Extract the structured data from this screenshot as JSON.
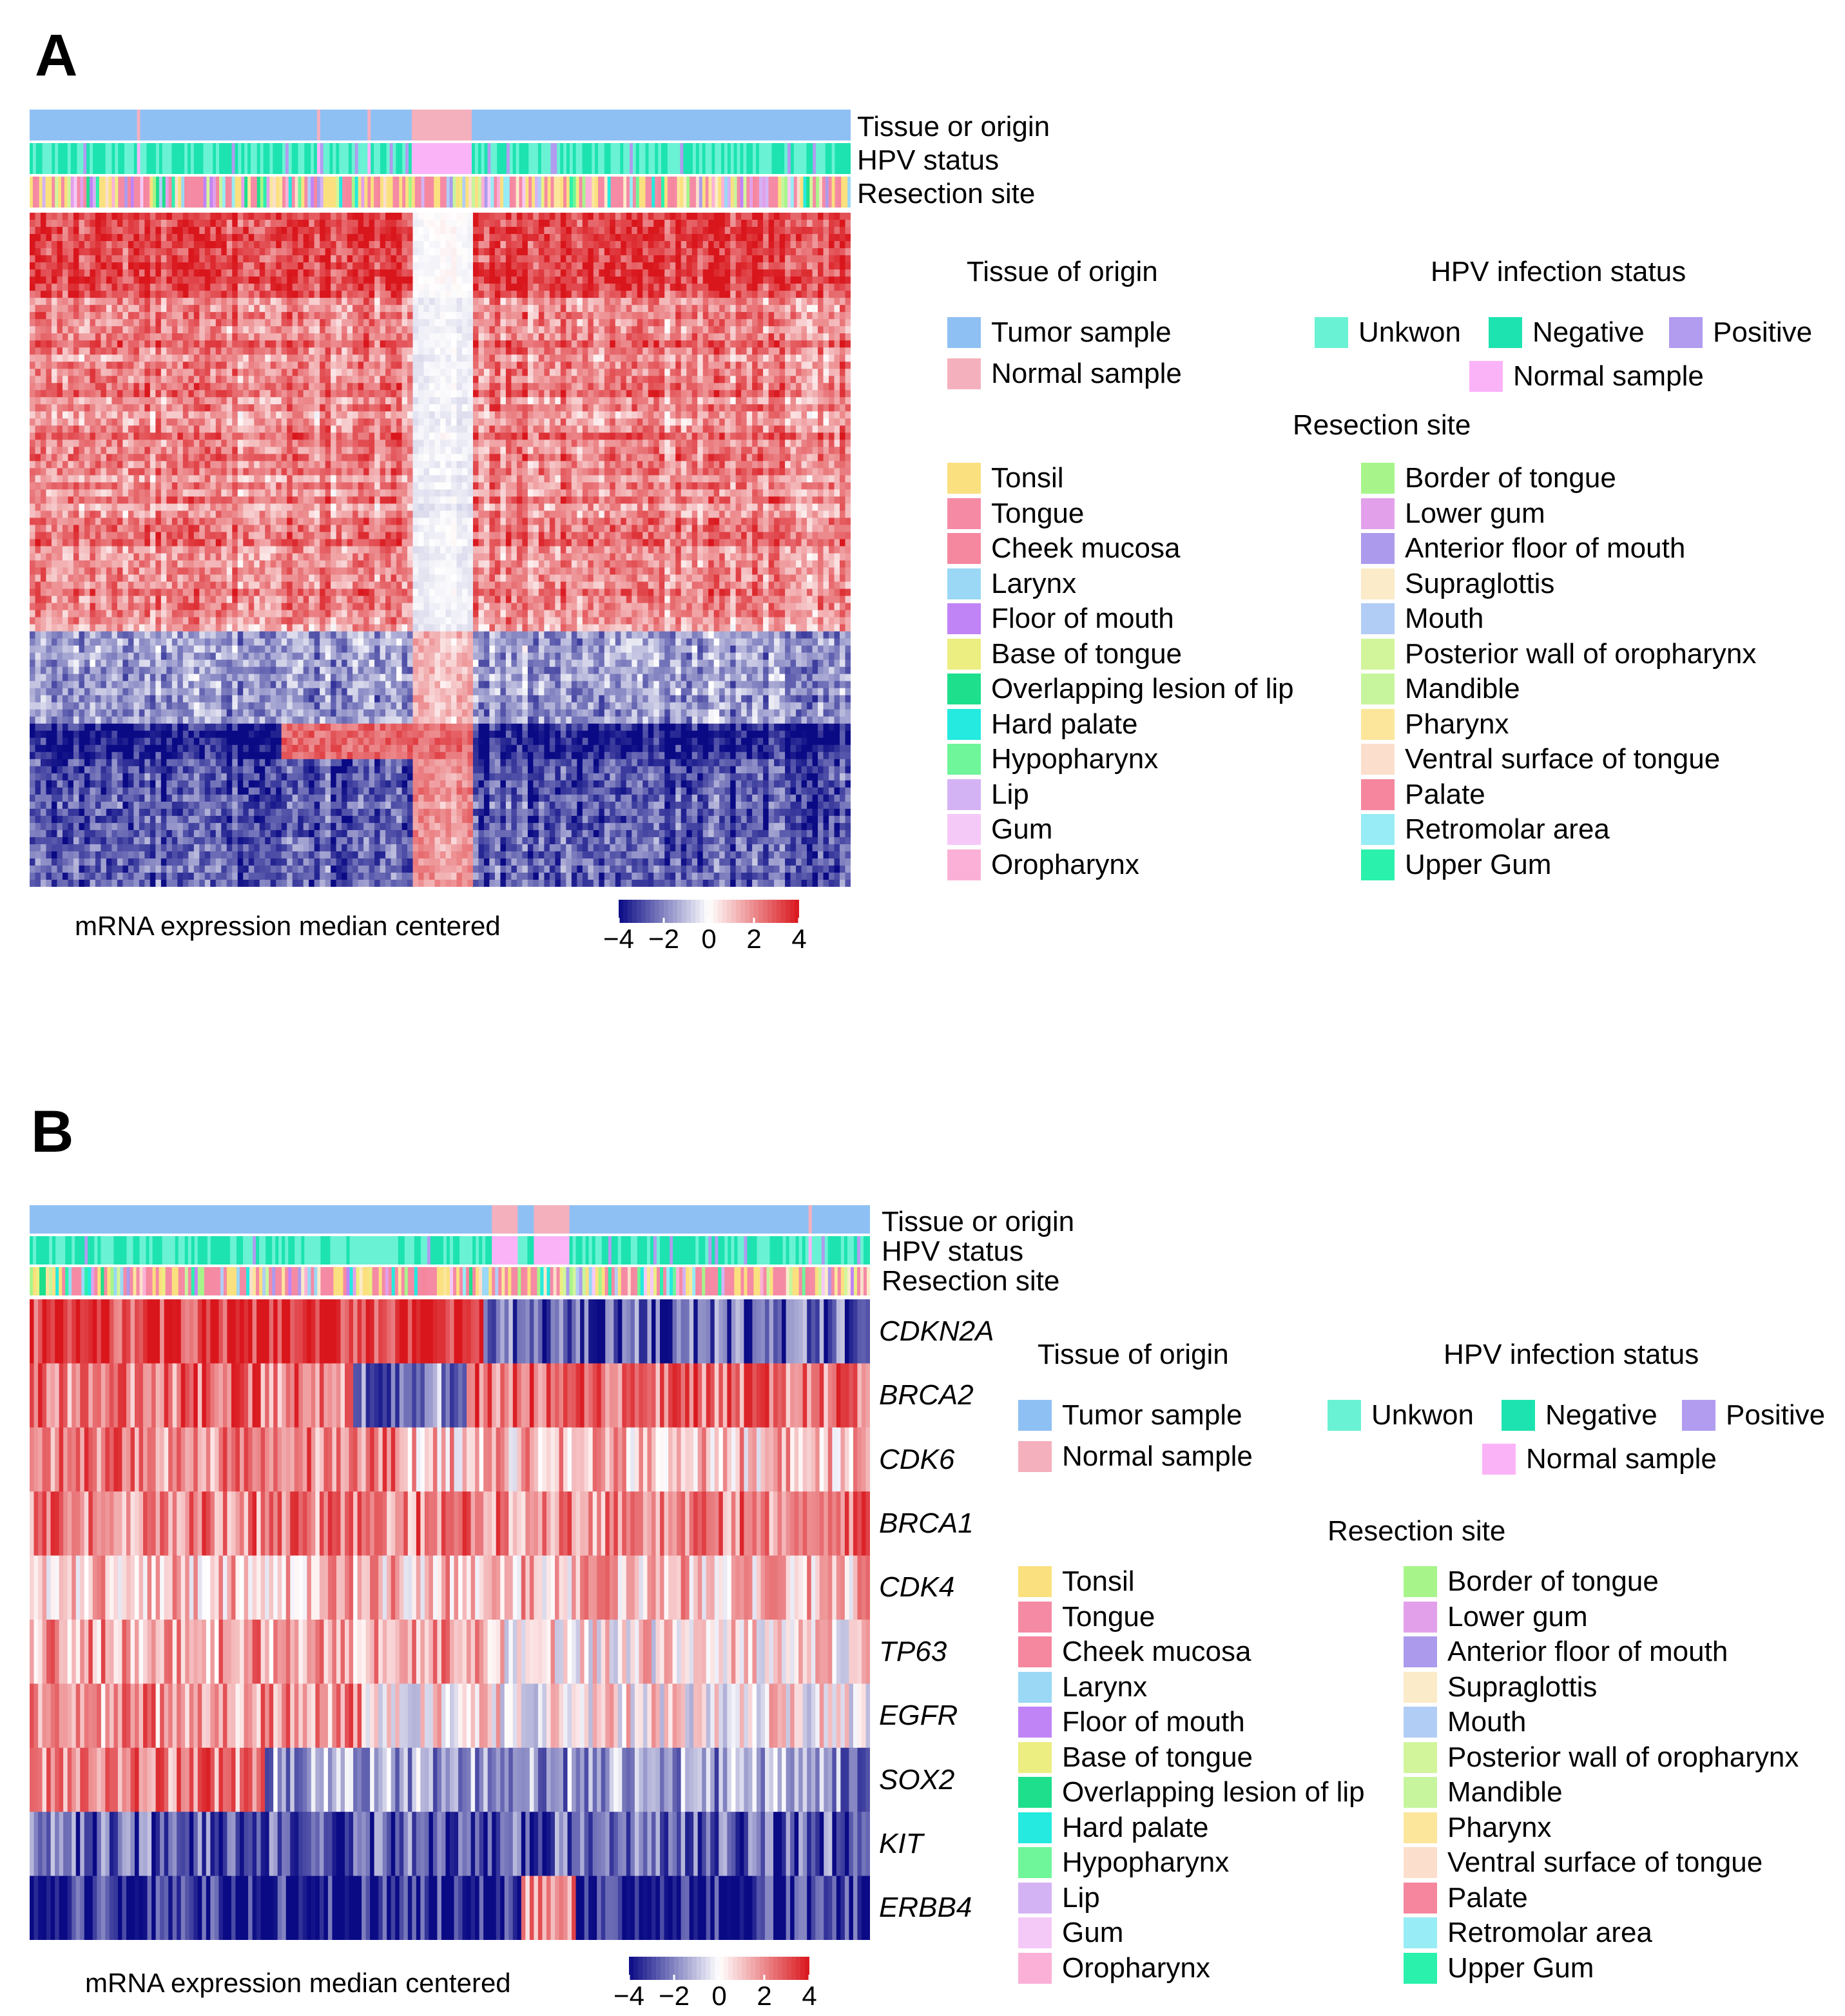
{
  "chart_data": [
    {
      "panel": "A",
      "type": "heatmap",
      "annotation_tracks": [
        "Tissue or origin",
        "HPV status",
        "Resection site"
      ],
      "rows": "genes (unlabeled)",
      "columns": "samples",
      "colorbar": {
        "label": "mRNA expression median centered",
        "ticks": [
          "−4",
          "−2",
          "0",
          "2",
          "4"
        ],
        "range": [
          -4,
          4
        ],
        "colors": [
          "#0a0a85",
          "#ffffff",
          "#d9161c"
        ]
      },
      "legend": {
        "tissue_title": "Tissue of origin",
        "tissue": [
          {
            "label": "Tumor sample",
            "color": "#8fc0f4"
          },
          {
            "label": "Normal sample",
            "color": "#f5b0bd"
          }
        ],
        "hpv_title": "HPV infection status",
        "hpv": [
          {
            "label": "Unkwon",
            "color": "#6af2d4"
          },
          {
            "label": "Negative",
            "color": "#1de3b0"
          },
          {
            "label": "Positive",
            "color": "#b19cf0"
          },
          {
            "label": "Normal sample",
            "color": "#fbb3f8"
          }
        ],
        "resection_title": "Resection site",
        "resection_left": [
          {
            "label": "Tonsil",
            "color": "#fbe07f"
          },
          {
            "label": "Tongue",
            "color": "#f58aa5"
          },
          {
            "label": "Cheek mucosa",
            "color": "#f5879f"
          },
          {
            "label": "Larynx",
            "color": "#9ad8f5"
          },
          {
            "label": "Floor of mouth",
            "color": "#c184f7"
          },
          {
            "label": "Base of tongue",
            "color": "#ecee82"
          },
          {
            "label": "Overlapping lesion of lip",
            "color": "#1edf8c"
          },
          {
            "label": "Hard palate",
            "color": "#24eadf"
          },
          {
            "label": "Hypopharynx",
            "color": "#6ff59a"
          },
          {
            "label": "Lip",
            "color": "#d4b3f4"
          },
          {
            "label": "Gum",
            "color": "#f5c9f7"
          },
          {
            "label": "Oropharynx",
            "color": "#fbb1d7"
          }
        ],
        "resection_right": [
          {
            "label": "Border of tongue",
            "color": "#a7f58a"
          },
          {
            "label": "Lower gum",
            "color": "#e3a0ea"
          },
          {
            "label": "Anterior floor of mouth",
            "color": "#ac9bec"
          },
          {
            "label": "Supraglottis",
            "color": "#fbebc9"
          },
          {
            "label": "Mouth",
            "color": "#b2cdf5"
          },
          {
            "label": "Posterior wall of oropharynx",
            "color": "#d2f59c"
          },
          {
            "label": "Mandible",
            "color": "#c6f59e"
          },
          {
            "label": "Pharynx",
            "color": "#fbe69c"
          },
          {
            "label": "Ventral surface of tongue",
            "color": "#fbdfcc"
          },
          {
            "label": "Palate",
            "color": "#f5869e"
          },
          {
            "label": "Retromolar area",
            "color": "#97ecf5"
          },
          {
            "label": "Upper Gum",
            "color": "#2af1ac"
          }
        ]
      }
    },
    {
      "panel": "B",
      "type": "heatmap",
      "annotation_tracks": [
        "Tissue or origin",
        "HPV status",
        "Resection site"
      ],
      "genes": [
        "CDKN2A",
        "BRCA2",
        "CDK6",
        "BRCA1",
        "CDK4",
        "TP63",
        "EGFR",
        "SOX2",
        "KIT",
        "ERBB4"
      ],
      "columns": "samples",
      "colorbar": {
        "label": "mRNA expression median centered",
        "ticks": [
          "−4",
          "−2",
          "0",
          "2",
          "4"
        ],
        "range": [
          -4,
          4
        ],
        "colors": [
          "#0a0a85",
          "#ffffff",
          "#d9161c"
        ]
      },
      "legend": {
        "tissue_title": "Tissue of origin",
        "tissue": [
          {
            "label": "Tumor sample",
            "color": "#8fc0f4"
          },
          {
            "label": "Normal sample",
            "color": "#f5b0bd"
          }
        ],
        "hpv_title": "HPV infection status",
        "hpv": [
          {
            "label": "Unkwon",
            "color": "#6af2d4"
          },
          {
            "label": "Negative",
            "color": "#1de3b0"
          },
          {
            "label": "Positive",
            "color": "#b19cf0"
          },
          {
            "label": "Normal sample",
            "color": "#fbb3f8"
          }
        ],
        "resection_title": "Resection site",
        "resection_left": [
          {
            "label": "Tonsil",
            "color": "#fbe07f"
          },
          {
            "label": "Tongue",
            "color": "#f58aa5"
          },
          {
            "label": "Cheek mucosa",
            "color": "#f5879f"
          },
          {
            "label": "Larynx",
            "color": "#9ad8f5"
          },
          {
            "label": "Floor of mouth",
            "color": "#c184f7"
          },
          {
            "label": "Base of tongue",
            "color": "#ecee82"
          },
          {
            "label": "Overlapping lesion of lip",
            "color": "#1edf8c"
          },
          {
            "label": "Hard palate",
            "color": "#24eadf"
          },
          {
            "label": "Hypopharynx",
            "color": "#6ff59a"
          },
          {
            "label": "Lip",
            "color": "#d4b3f4"
          },
          {
            "label": "Gum",
            "color": "#f5c9f7"
          },
          {
            "label": "Oropharynx",
            "color": "#fbb1d7"
          }
        ],
        "resection_right": [
          {
            "label": "Border of tongue",
            "color": "#a7f58a"
          },
          {
            "label": "Lower gum",
            "color": "#e3a0ea"
          },
          {
            "label": "Anterior floor of mouth",
            "color": "#ac9bec"
          },
          {
            "label": "Supraglottis",
            "color": "#fbebc9"
          },
          {
            "label": "Mouth",
            "color": "#b2cdf5"
          },
          {
            "label": "Posterior wall of oropharynx",
            "color": "#d2f59c"
          },
          {
            "label": "Mandible",
            "color": "#c6f59e"
          },
          {
            "label": "Pharynx",
            "color": "#fbe69c"
          },
          {
            "label": "Ventral surface of tongue",
            "color": "#fbdfcc"
          },
          {
            "label": "Palate",
            "color": "#f5869e"
          },
          {
            "label": "Retromolar area",
            "color": "#97ecf5"
          },
          {
            "label": "Upper Gum",
            "color": "#2af1ac"
          }
        ]
      }
    }
  ],
  "panels": {
    "A": {
      "letter": "A"
    },
    "B": {
      "letter": "B"
    }
  }
}
